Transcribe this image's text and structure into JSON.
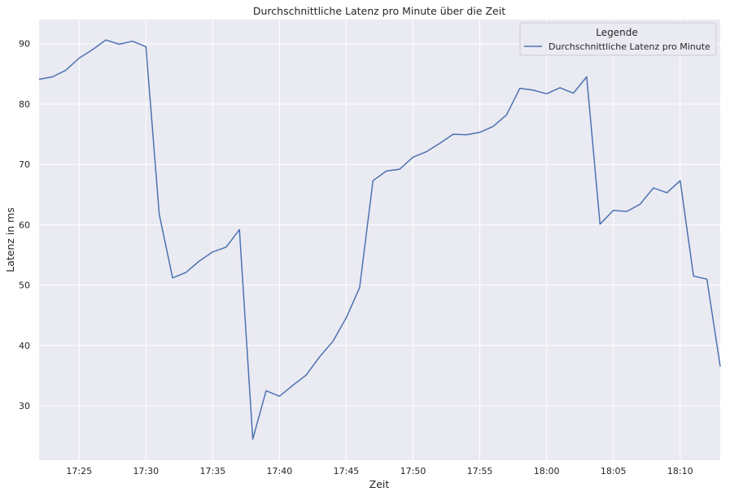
{
  "chart_data": {
    "type": "line",
    "title": "Durchschnittliche Latenz pro Minute über die Zeit",
    "xlabel": "Zeit",
    "ylabel": "Latenz in ms",
    "xlim": [
      "17:22",
      "18:13"
    ],
    "ylim": [
      21,
      94
    ],
    "x_ticks": [
      "17:25",
      "17:30",
      "17:35",
      "17:40",
      "17:45",
      "17:50",
      "17:55",
      "18:00",
      "18:05",
      "18:10"
    ],
    "y_ticks": [
      30,
      40,
      50,
      60,
      70,
      80,
      90
    ],
    "grid": true,
    "legend": {
      "title": "Legende",
      "position": "top-right"
    },
    "x": [
      "17:22",
      "17:23",
      "17:24",
      "17:25",
      "17:26",
      "17:27",
      "17:28",
      "17:29",
      "17:30",
      "17:31",
      "17:32",
      "17:33",
      "17:34",
      "17:35",
      "17:36",
      "17:37",
      "17:38",
      "17:39",
      "17:40",
      "17:41",
      "17:42",
      "17:43",
      "17:44",
      "17:45",
      "17:46",
      "17:47",
      "17:48",
      "17:49",
      "17:50",
      "17:51",
      "17:52",
      "17:53",
      "17:54",
      "17:55",
      "17:56",
      "17:57",
      "17:58",
      "17:59",
      "18:00",
      "18:01",
      "18:02",
      "18:03",
      "18:04",
      "18:05",
      "18:06",
      "18:07",
      "18:08",
      "18:09",
      "18:10",
      "18:11",
      "18:12",
      "18:13"
    ],
    "series": [
      {
        "name": "Durchschnittliche Latenz pro Minute",
        "color": "#4c72b0",
        "values": [
          84.1,
          84.5,
          85.6,
          87.6,
          89.0,
          90.6,
          89.9,
          90.4,
          89.5,
          61.7,
          51.2,
          52.1,
          54.0,
          55.5,
          56.3,
          59.2,
          24.5,
          32.5,
          31.6,
          33.4,
          35.1,
          38.1,
          40.7,
          44.6,
          49.6,
          67.3,
          68.9,
          69.2,
          71.2,
          72.1,
          73.5,
          75.0,
          74.9,
          75.3,
          76.3,
          78.2,
          82.6,
          82.3,
          81.7,
          82.7,
          81.8,
          84.5,
          60.1,
          62.4,
          62.2,
          63.4,
          66.1,
          65.3,
          67.3,
          51.5,
          51.0,
          36.5
        ]
      }
    ]
  }
}
